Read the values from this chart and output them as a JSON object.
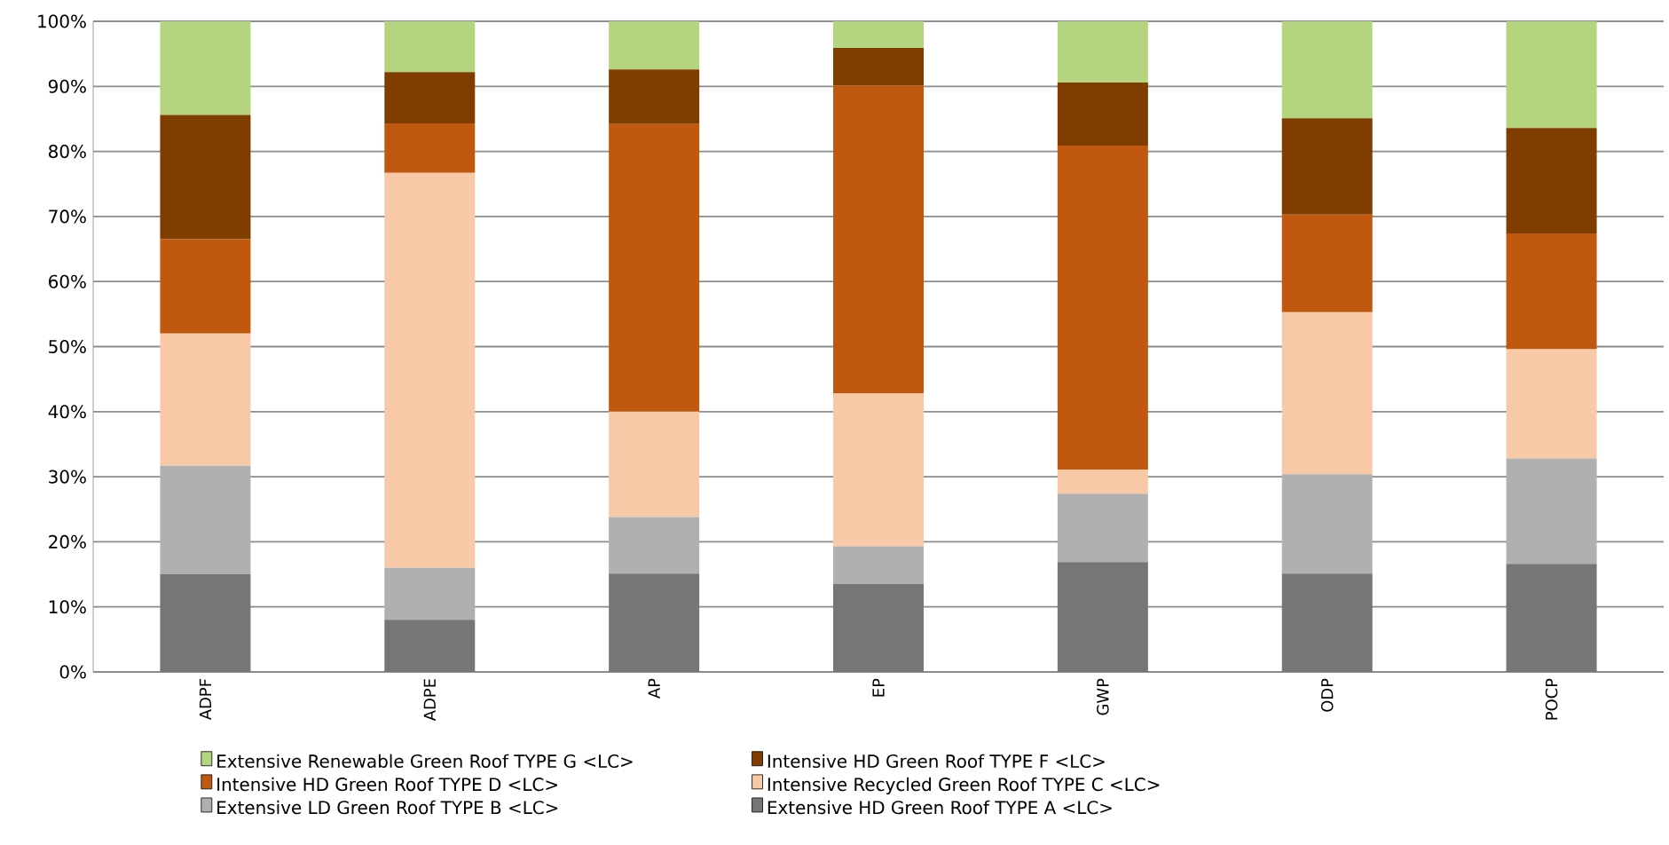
{
  "chart_data": {
    "type": "bar",
    "stacked": true,
    "categories": [
      "ADPF",
      "ADPE",
      "AP",
      "EP",
      "GWP",
      "ODP",
      "POCP"
    ],
    "series": [
      {
        "name": "Extensive HD Green Roof TYPE A <LC>",
        "color": "#767676",
        "values": [
          15,
          8,
          15.1,
          13.5,
          16.9,
          15.1,
          16.6
        ]
      },
      {
        "name": "Extensive LD Green Roof TYPE B <LC>",
        "color": "#b0b0b0",
        "values": [
          16.7,
          8,
          8.7,
          5.8,
          10.5,
          15.3,
          16.2
        ]
      },
      {
        "name": "Intensive Recycled Green Roof TYPE C <LC>",
        "color": "#f7c9a6",
        "values": [
          20.3,
          60.7,
          16.2,
          23.5,
          3.7,
          24.9,
          16.8
        ]
      },
      {
        "name": "Intensive HD Green Roof TYPE D <LC>",
        "color": "#c0590f",
        "values": [
          14.5,
          7.6,
          44.2,
          47.3,
          49.8,
          15,
          17.8
        ]
      },
      {
        "name": "Intensive HD Green Roof TYPE F <LC>",
        "color": "#7f3d00",
        "values": [
          19.1,
          7.9,
          8.4,
          5.8,
          9.7,
          14.8,
          16.2
        ]
      },
      {
        "name": "Extensive Renewable Green Roof TYPE G <LC>",
        "color": "#b5d47f",
        "values": [
          14.4,
          7.8,
          7.4,
          4.1,
          9.4,
          14.9,
          16.4
        ]
      }
    ],
    "ylim": [
      0,
      100
    ],
    "yticks": [
      {
        "value": 0,
        "label": "0%"
      },
      {
        "value": 10,
        "label": "10%"
      },
      {
        "value": 20,
        "label": "20%"
      },
      {
        "value": 30,
        "label": "30%"
      },
      {
        "value": 40,
        "label": "40%"
      },
      {
        "value": 50,
        "label": "50%"
      },
      {
        "value": 60,
        "label": "60%"
      },
      {
        "value": 70,
        "label": "70%"
      },
      {
        "value": 80,
        "label": "80%"
      },
      {
        "value": 90,
        "label": "90%"
      },
      {
        "value": 100,
        "label": "100%"
      }
    ],
    "grid": "y",
    "legend": "bottom"
  }
}
